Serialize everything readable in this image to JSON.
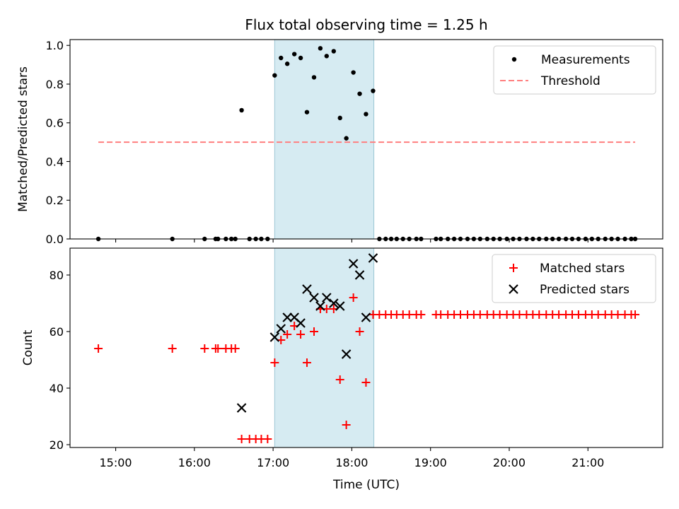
{
  "chart_data": [
    {
      "type": "scatter",
      "title": "Flux total observing time = 1.25 h",
      "ylabel": "Matched/Predicted stars",
      "xlabel": "",
      "xlim": [
        14.42,
        21.95
      ],
      "ylim": [
        0.0,
        1.03
      ],
      "yticks": [
        "0.0",
        "0.2",
        "0.4",
        "0.6",
        "0.8",
        "1.0"
      ],
      "ytick_values": [
        0,
        0.2,
        0.4,
        0.6,
        0.8,
        1.0
      ],
      "highlight_span": [
        17.02,
        18.28
      ],
      "colors": {
        "measurements": "#000000",
        "threshold": "#ff7f7f",
        "span": "#add8e6"
      },
      "legend": {
        "position": "top-right",
        "entries": [
          "Measurements",
          "Threshold"
        ]
      },
      "series": [
        {
          "name": "Measurements",
          "marker": "dot",
          "points": [
            [
              14.78,
              0.0
            ],
            [
              15.72,
              0.0
            ],
            [
              16.13,
              0.0
            ],
            [
              16.27,
              0.0
            ],
            [
              16.3,
              0.0
            ],
            [
              16.4,
              0.0
            ],
            [
              16.47,
              0.0
            ],
            [
              16.52,
              0.0
            ],
            [
              16.6,
              0.665
            ],
            [
              16.7,
              0.0
            ],
            [
              16.78,
              0.0
            ],
            [
              16.85,
              0.0
            ],
            [
              16.93,
              0.0
            ],
            [
              17.02,
              0.845
            ],
            [
              17.1,
              0.935
            ],
            [
              17.18,
              0.905
            ],
            [
              17.27,
              0.955
            ],
            [
              17.35,
              0.935
            ],
            [
              17.43,
              0.655
            ],
            [
              17.52,
              0.835
            ],
            [
              17.6,
              0.985
            ],
            [
              17.68,
              0.945
            ],
            [
              17.77,
              0.97
            ],
            [
              17.85,
              0.625
            ],
            [
              17.93,
              0.52
            ],
            [
              18.02,
              0.86
            ],
            [
              18.1,
              0.75
            ],
            [
              18.18,
              0.645
            ],
            [
              18.27,
              0.765
            ],
            [
              18.35,
              0.0
            ],
            [
              18.43,
              0.0
            ],
            [
              18.5,
              0.0
            ],
            [
              18.57,
              0.0
            ],
            [
              18.65,
              0.0
            ],
            [
              18.73,
              0.0
            ],
            [
              18.82,
              0.0
            ],
            [
              18.88,
              0.0
            ],
            [
              19.07,
              0.0
            ],
            [
              19.13,
              0.0
            ],
            [
              19.22,
              0.0
            ],
            [
              19.3,
              0.0
            ],
            [
              19.38,
              0.0
            ],
            [
              19.47,
              0.0
            ],
            [
              19.55,
              0.0
            ],
            [
              19.63,
              0.0
            ],
            [
              19.72,
              0.0
            ],
            [
              19.8,
              0.0
            ],
            [
              19.88,
              0.0
            ],
            [
              19.97,
              0.0
            ],
            [
              20.05,
              0.0
            ],
            [
              20.13,
              0.0
            ],
            [
              20.22,
              0.0
            ],
            [
              20.3,
              0.0
            ],
            [
              20.38,
              0.0
            ],
            [
              20.47,
              0.0
            ],
            [
              20.55,
              0.0
            ],
            [
              20.63,
              0.0
            ],
            [
              20.72,
              0.0
            ],
            [
              20.8,
              0.0
            ],
            [
              20.88,
              0.0
            ],
            [
              20.97,
              0.0
            ],
            [
              21.05,
              0.0
            ],
            [
              21.13,
              0.0
            ],
            [
              21.22,
              0.0
            ],
            [
              21.3,
              0.0
            ],
            [
              21.38,
              0.0
            ],
            [
              21.47,
              0.0
            ],
            [
              21.55,
              0.0
            ],
            [
              21.6,
              0.0
            ]
          ]
        },
        {
          "name": "Threshold",
          "marker": "dashed-line",
          "points": [
            [
              14.78,
              0.5
            ],
            [
              21.6,
              0.5
            ]
          ]
        }
      ]
    },
    {
      "type": "scatter",
      "title": "",
      "ylabel": "Count",
      "xlabel": "Time (UTC)",
      "xlim": [
        14.42,
        21.95
      ],
      "ylim": [
        19.0,
        89.5
      ],
      "yticks": [
        "20",
        "40",
        "60",
        "80"
      ],
      "ytick_values": [
        20,
        40,
        60,
        80
      ],
      "xticks": [
        "15:00",
        "16:00",
        "17:00",
        "18:00",
        "19:00",
        "20:00",
        "21:00"
      ],
      "xtick_values": [
        15,
        16,
        17,
        18,
        19,
        20,
        21
      ],
      "highlight_span": [
        17.02,
        18.28
      ],
      "colors": {
        "matched": "#ff0000",
        "predicted": "#000000",
        "span": "#add8e6"
      },
      "legend": {
        "position": "top-right",
        "entries": [
          "Matched stars",
          "Predicted stars"
        ]
      },
      "series": [
        {
          "name": "Matched stars",
          "marker": "plus",
          "points": [
            [
              14.78,
              54
            ],
            [
              15.72,
              54
            ],
            [
              16.13,
              54
            ],
            [
              16.27,
              54
            ],
            [
              16.3,
              54
            ],
            [
              16.4,
              54
            ],
            [
              16.47,
              54
            ],
            [
              16.52,
              54
            ],
            [
              16.6,
              22
            ],
            [
              16.7,
              22
            ],
            [
              16.78,
              22
            ],
            [
              16.85,
              22
            ],
            [
              16.93,
              22
            ],
            [
              17.02,
              49
            ],
            [
              17.1,
              57
            ],
            [
              17.18,
              59
            ],
            [
              17.27,
              62
            ],
            [
              17.35,
              59
            ],
            [
              17.43,
              49
            ],
            [
              17.52,
              60
            ],
            [
              17.6,
              68
            ],
            [
              17.68,
              68
            ],
            [
              17.77,
              68
            ],
            [
              17.85,
              43
            ],
            [
              17.93,
              27
            ],
            [
              18.02,
              72
            ],
            [
              18.1,
              60
            ],
            [
              18.18,
              42
            ],
            [
              18.27,
              66
            ],
            [
              18.35,
              66
            ],
            [
              18.43,
              66
            ],
            [
              18.5,
              66
            ],
            [
              18.57,
              66
            ],
            [
              18.65,
              66
            ],
            [
              18.73,
              66
            ],
            [
              18.82,
              66
            ],
            [
              18.88,
              66
            ],
            [
              19.07,
              66
            ],
            [
              19.13,
              66
            ],
            [
              19.22,
              66
            ],
            [
              19.3,
              66
            ],
            [
              19.38,
              66
            ],
            [
              19.47,
              66
            ],
            [
              19.55,
              66
            ],
            [
              19.63,
              66
            ],
            [
              19.72,
              66
            ],
            [
              19.8,
              66
            ],
            [
              19.88,
              66
            ],
            [
              19.97,
              66
            ],
            [
              20.05,
              66
            ],
            [
              20.13,
              66
            ],
            [
              20.22,
              66
            ],
            [
              20.3,
              66
            ],
            [
              20.38,
              66
            ],
            [
              20.47,
              66
            ],
            [
              20.55,
              66
            ],
            [
              20.63,
              66
            ],
            [
              20.72,
              66
            ],
            [
              20.8,
              66
            ],
            [
              20.88,
              66
            ],
            [
              20.97,
              66
            ],
            [
              21.05,
              66
            ],
            [
              21.13,
              66
            ],
            [
              21.22,
              66
            ],
            [
              21.3,
              66
            ],
            [
              21.38,
              66
            ],
            [
              21.47,
              66
            ],
            [
              21.55,
              66
            ],
            [
              21.6,
              66
            ]
          ]
        },
        {
          "name": "Predicted stars",
          "marker": "x",
          "points": [
            [
              16.6,
              33
            ],
            [
              17.02,
              58
            ],
            [
              17.1,
              61
            ],
            [
              17.18,
              65
            ],
            [
              17.27,
              65
            ],
            [
              17.35,
              63
            ],
            [
              17.43,
              75
            ],
            [
              17.52,
              72
            ],
            [
              17.6,
              69
            ],
            [
              17.68,
              72
            ],
            [
              17.77,
              70
            ],
            [
              17.85,
              69
            ],
            [
              17.93,
              52
            ],
            [
              18.02,
              84
            ],
            [
              18.1,
              80
            ],
            [
              18.18,
              65
            ],
            [
              18.27,
              86
            ]
          ]
        }
      ]
    }
  ]
}
